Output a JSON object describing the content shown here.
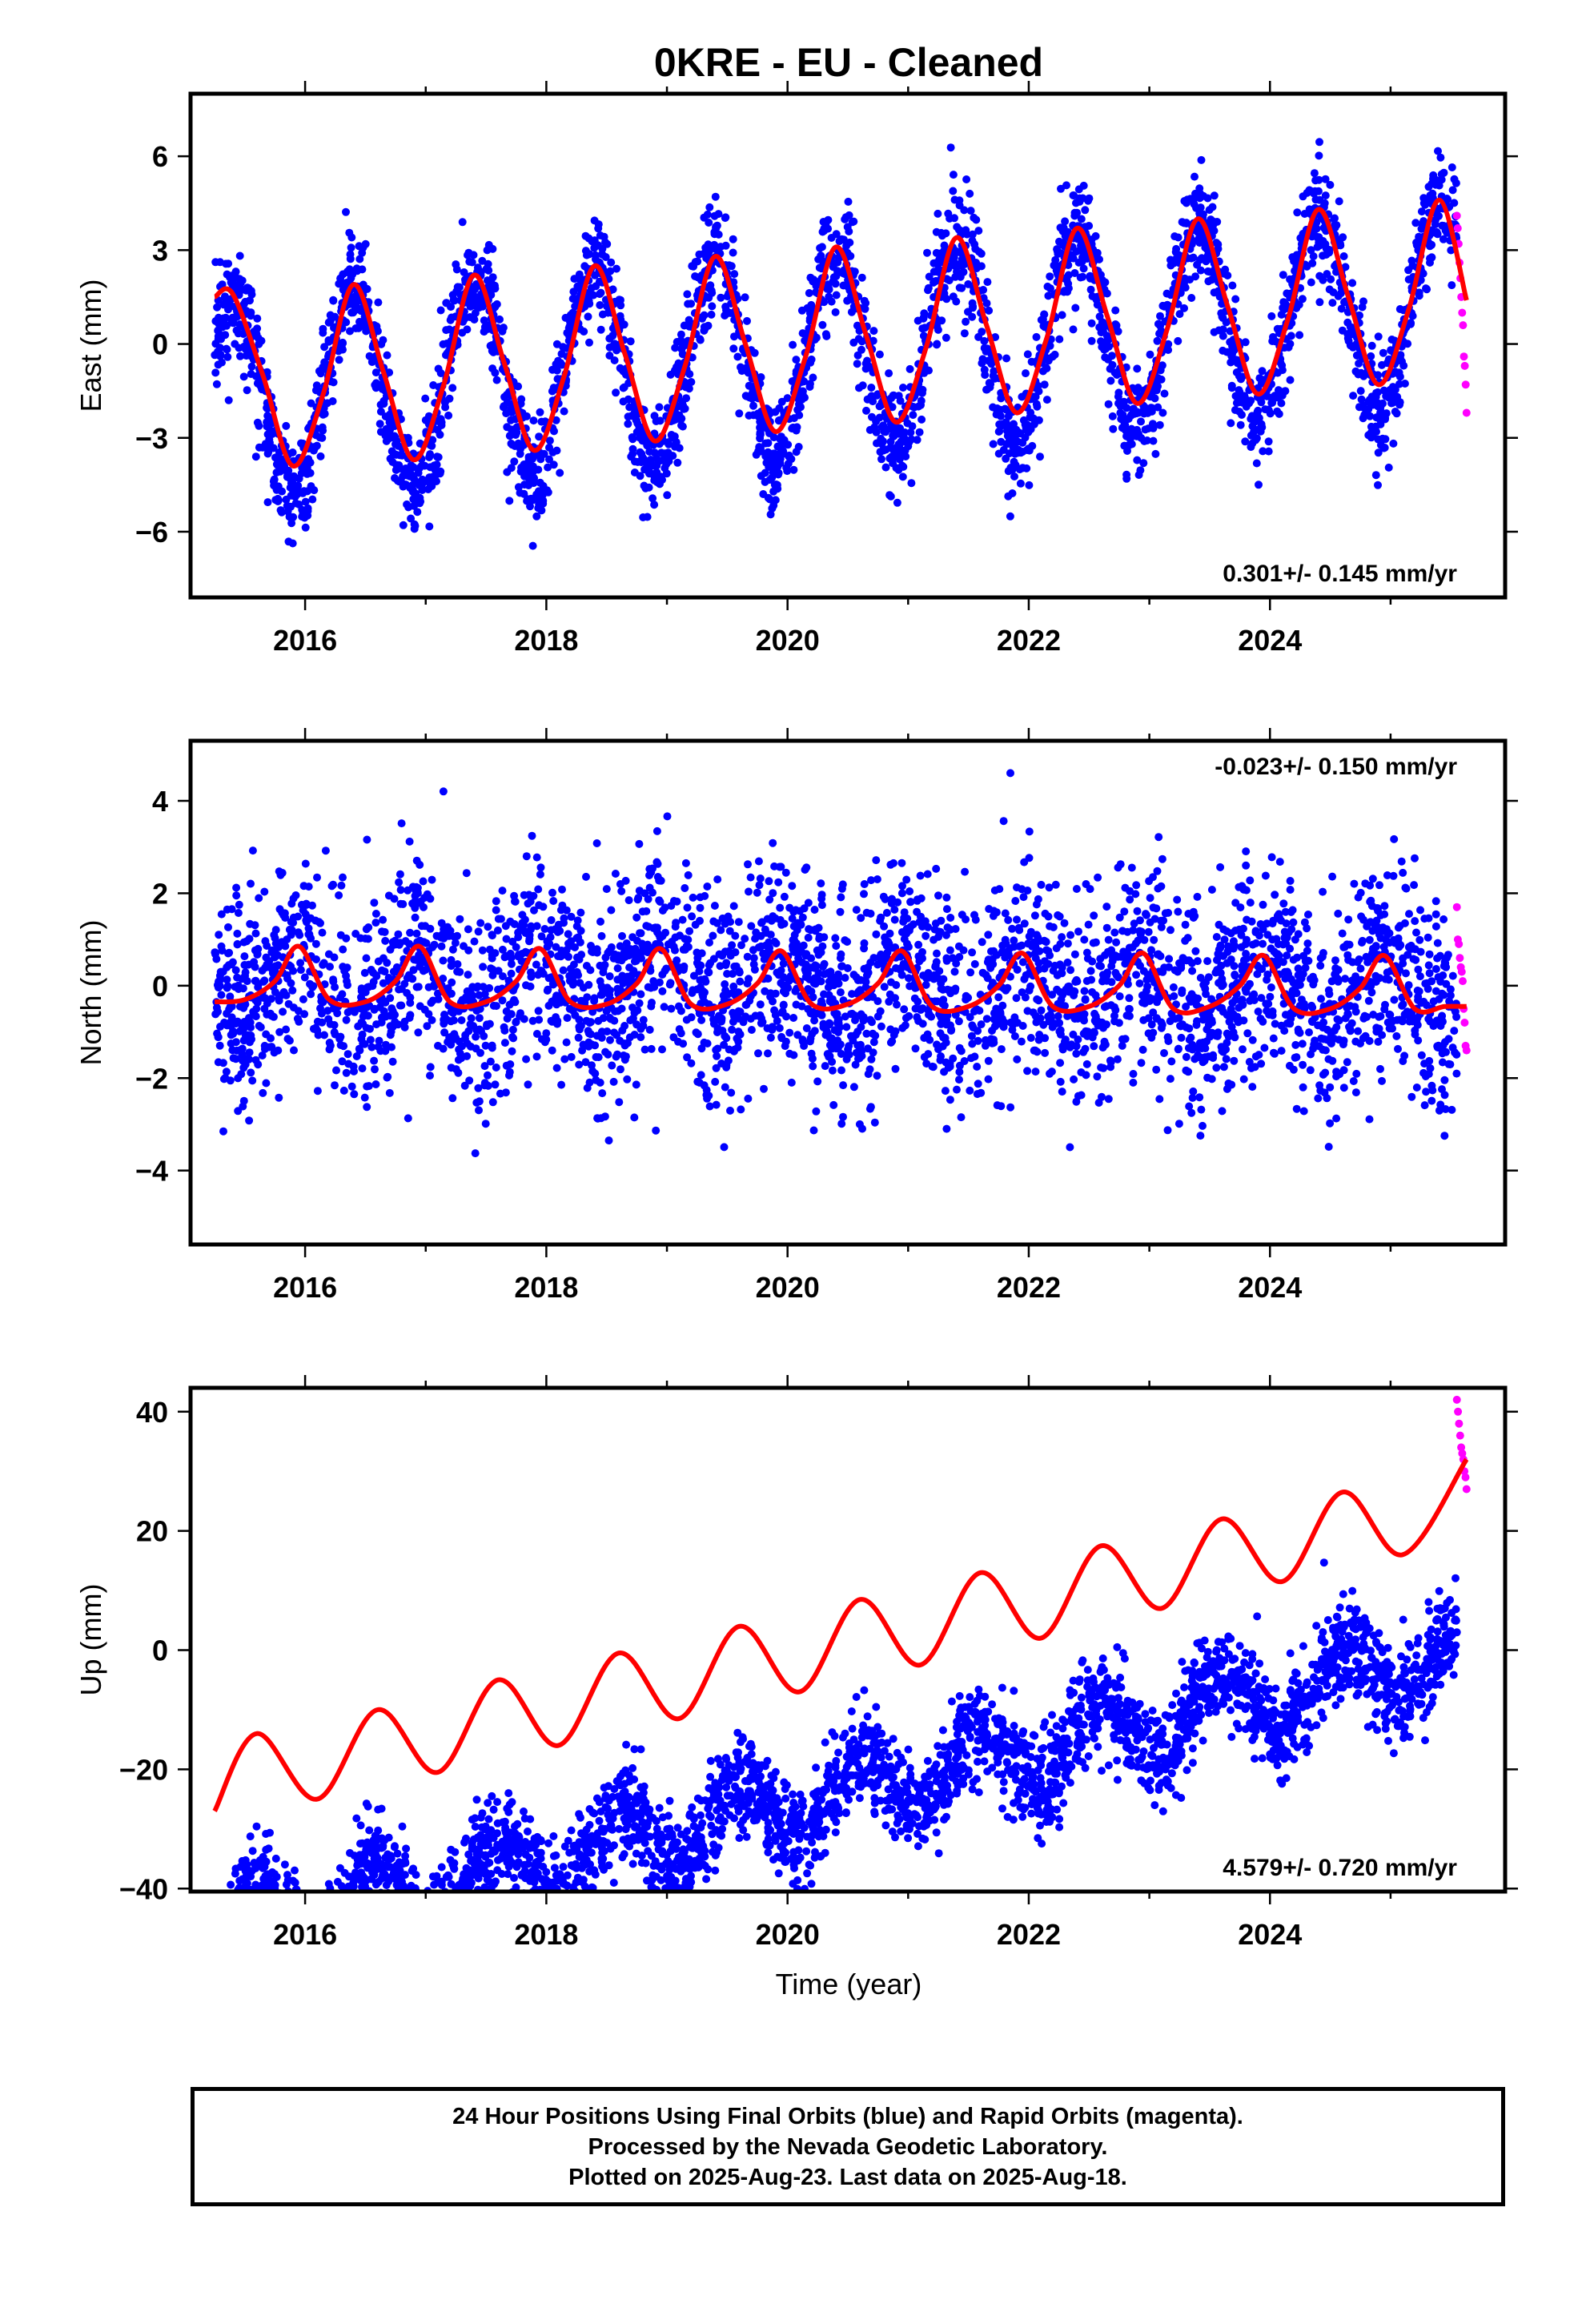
{
  "title": "0KRE  - EU - Cleaned",
  "xlabel": "Time (year)",
  "colors": {
    "final": "#0000ff",
    "rapid": "#ff00ff",
    "model": "#ff0000",
    "frame": "#000000"
  },
  "footer": {
    "line1": "24 Hour Positions Using Final Orbits (blue) and Rapid Orbits (magenta).",
    "line2": "Processed by the Nevada Geodetic Laboratory.",
    "line3": "Plotted on 2025-Aug-23. Last data on 2025-Aug-18."
  },
  "chart_data": [
    {
      "type": "scatter",
      "component": "east",
      "ylabel": "East (mm)",
      "xlim": [
        2015.05,
        2025.95
      ],
      "ylim": [
        -8.1,
        8.0
      ],
      "xticks": [
        2016,
        2018,
        2020,
        2022,
        2024
      ],
      "yticks": [
        -6,
        -3,
        0,
        3,
        6
      ],
      "rate_label": "0.301+/- 0.145 mm/yr",
      "rate_position": "bottom-right",
      "series": [
        {
          "name": "Final Orbits (blue)",
          "kind": "points",
          "x_range": [
            2015.25,
            2025.55
          ],
          "trend_mm_per_yr": 0.301,
          "offset": -0.4,
          "annual_amp": 3.2,
          "annual_peak": 2015.4,
          "scatter_sd": 0.9
        },
        {
          "name": "Rapid Orbits (magenta)",
          "kind": "points",
          "x_range": [
            2025.55,
            2025.63
          ],
          "values": [
            4.1,
            3.7,
            3.2,
            2.6,
            2.1,
            1.5,
            1.0,
            0.6,
            -0.4,
            -0.7,
            -1.3,
            -2.2
          ]
        },
        {
          "name": "model",
          "kind": "line",
          "x": [
            2015.25,
            2015.4,
            2015.65,
            2015.9,
            2016.15,
            2016.4,
            2016.65,
            2016.9,
            2017.15,
            2017.4,
            2017.65,
            2017.9,
            2018.15,
            2018.4,
            2018.65,
            2018.9,
            2019.15,
            2019.4,
            2019.65,
            2019.9,
            2020.15,
            2020.4,
            2020.65,
            2020.9,
            2021.15,
            2021.4,
            2021.65,
            2021.9,
            2022.15,
            2022.4,
            2022.65,
            2022.9,
            2023.15,
            2023.4,
            2023.65,
            2023.9,
            2024.15,
            2024.4,
            2024.65,
            2024.9,
            2025.15,
            2025.4,
            2025.63
          ],
          "y": [
            1.5,
            1.6,
            -1.0,
            -3.9,
            -1.6,
            1.9,
            -0.9,
            -3.7,
            -1.3,
            2.2,
            -0.6,
            -3.4,
            -1.0,
            2.5,
            -0.3,
            -3.1,
            -0.7,
            2.8,
            0.0,
            -2.8,
            -0.4,
            3.1,
            0.3,
            -2.5,
            -0.1,
            3.4,
            0.6,
            -2.2,
            0.2,
            3.7,
            0.9,
            -1.9,
            0.5,
            4.0,
            1.2,
            -1.6,
            0.8,
            4.3,
            1.5,
            -1.3,
            1.1,
            4.6,
            1.4
          ]
        }
      ]
    },
    {
      "type": "scatter",
      "component": "north",
      "ylabel": "North (mm)",
      "xlim": [
        2015.05,
        2025.95
      ],
      "ylim": [
        -5.6,
        5.3
      ],
      "xticks": [
        2016,
        2018,
        2020,
        2022,
        2024
      ],
      "yticks": [
        -4,
        -2,
        0,
        2,
        4
      ],
      "rate_label": "-0.023+/- 0.150 mm/yr",
      "rate_position": "top-right",
      "series": [
        {
          "name": "Final Orbits (blue)",
          "kind": "points",
          "x_range": [
            2015.25,
            2025.55
          ],
          "trend_mm_per_yr": -0.023,
          "offset": 0.0,
          "annual_amp": 0.6,
          "annual_peak": 2015.95,
          "scatter_sd": 1.1
        },
        {
          "name": "Rapid Orbits (magenta)",
          "kind": "points",
          "x_range": [
            2025.55,
            2025.63
          ],
          "values": [
            1.7,
            1.0,
            0.9,
            0.6,
            0.4,
            0.3,
            0.1,
            -0.5,
            -0.8,
            -1.3,
            -1.4
          ]
        },
        {
          "name": "model",
          "kind": "line",
          "x": [
            2015.25,
            2015.5,
            2015.75,
            2015.95,
            2016.2,
            2016.5,
            2016.75,
            2016.95,
            2017.2,
            2017.5,
            2017.75,
            2017.95,
            2018.2,
            2018.5,
            2018.75,
            2018.95,
            2019.2,
            2019.5,
            2019.75,
            2019.95,
            2020.2,
            2020.5,
            2020.75,
            2020.95,
            2021.2,
            2021.5,
            2021.75,
            2021.95,
            2022.2,
            2022.5,
            2022.75,
            2022.95,
            2023.2,
            2023.5,
            2023.75,
            2023.95,
            2024.2,
            2024.5,
            2024.75,
            2024.95,
            2025.2,
            2025.45,
            2025.63
          ],
          "y": [
            -0.35,
            -0.3,
            0.1,
            0.85,
            -0.3,
            -0.35,
            0.1,
            0.85,
            -0.35,
            -0.35,
            0.1,
            0.8,
            -0.35,
            -0.4,
            0.05,
            0.8,
            -0.4,
            -0.4,
            0.05,
            0.75,
            -0.4,
            -0.4,
            0.05,
            0.75,
            -0.45,
            -0.45,
            0.0,
            0.7,
            -0.45,
            -0.45,
            0.0,
            0.7,
            -0.5,
            -0.45,
            0.0,
            0.65,
            -0.5,
            -0.5,
            -0.05,
            0.65,
            -0.5,
            -0.45,
            -0.45
          ]
        }
      ]
    },
    {
      "type": "scatter",
      "component": "up",
      "ylabel": "Up (mm)",
      "xlim": [
        2015.05,
        2025.95
      ],
      "ylim": [
        -40.5,
        44.0
      ],
      "xticks": [
        2016,
        2018,
        2020,
        2022,
        2024
      ],
      "yticks": [
        -40,
        -20,
        0,
        20,
        40
      ],
      "rate_label": "4.579+/- 0.720 mm/yr",
      "rate_position": "bottom-right",
      "series": [
        {
          "name": "Final Orbits (blue)",
          "kind": "points",
          "x_range": [
            2015.25,
            2025.55
          ],
          "trend_mm_per_yr": 4.579,
          "offset": -26.0,
          "annual_amp": 5.5,
          "annual_peak": 2015.6,
          "scatter_sd": 4.0
        },
        {
          "name": "Rapid Orbits (magenta)",
          "kind": "points",
          "x_range": [
            2025.55,
            2025.63
          ],
          "values": [
            42,
            40,
            38,
            36,
            34,
            33,
            32,
            30,
            29,
            27
          ]
        },
        {
          "name": "model",
          "kind": "line",
          "x": [
            2015.25,
            2015.6,
            2016.1,
            2016.6,
            2017.1,
            2017.6,
            2018.1,
            2018.6,
            2019.1,
            2019.6,
            2020.1,
            2020.6,
            2021.1,
            2021.6,
            2022.1,
            2022.6,
            2023.1,
            2023.6,
            2024.1,
            2024.6,
            2025.1,
            2025.63
          ],
          "y": [
            -27,
            -14,
            -25,
            -10,
            -20.5,
            -5,
            -16,
            -0.5,
            -11.5,
            4,
            -7,
            8.5,
            -2.5,
            13,
            2,
            17.5,
            7,
            22,
            11.5,
            26.5,
            16,
            32
          ]
        }
      ]
    }
  ]
}
